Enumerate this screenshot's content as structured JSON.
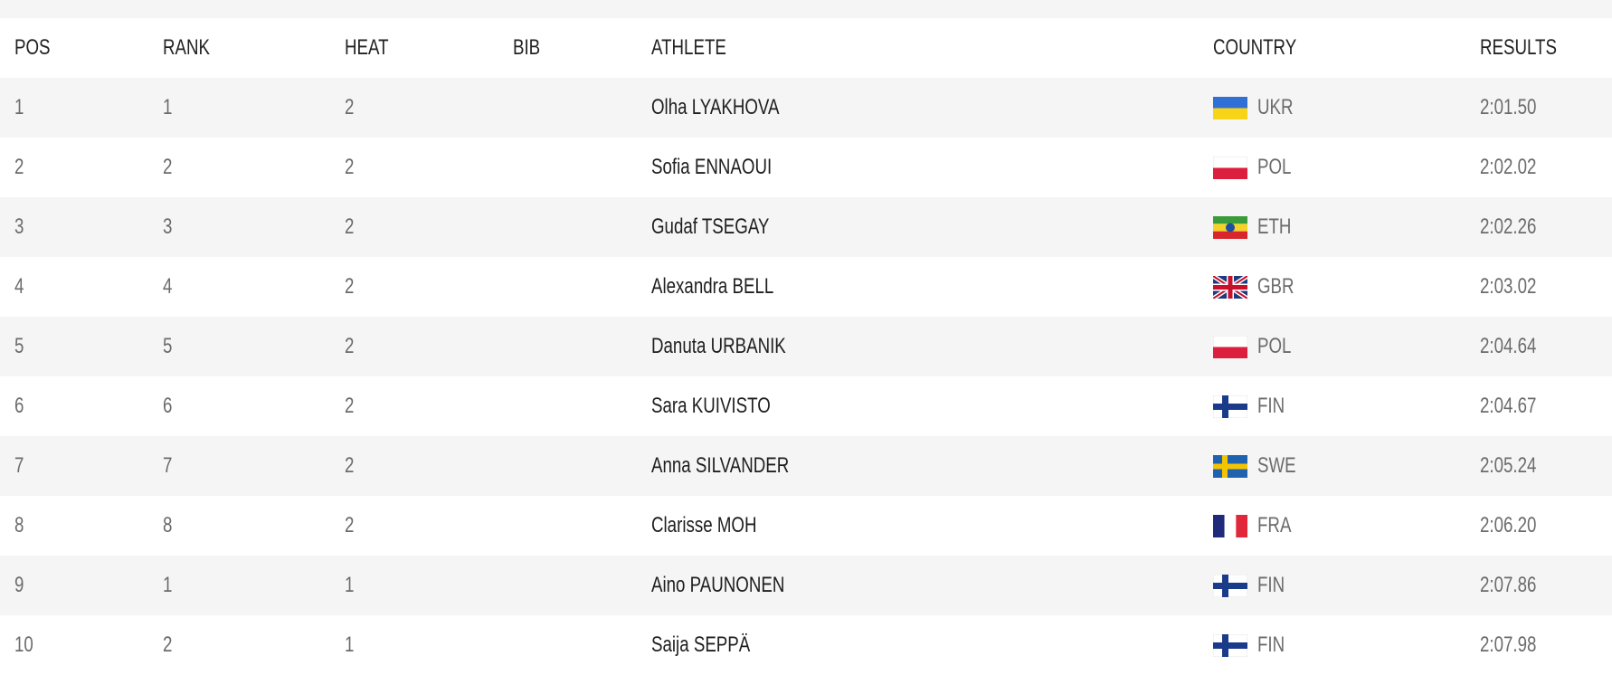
{
  "table": {
    "headers": {
      "pos": "POS",
      "rank": "RANK",
      "heat": "HEAT",
      "bib": "BIB",
      "athlete": "ATHLETE",
      "country": "COUNTRY",
      "results": "RESULTS"
    },
    "rows": [
      {
        "pos": "1",
        "rank": "1",
        "heat": "2",
        "bib": "",
        "athlete": "Olha LYAKHOVA",
        "country": "UKR",
        "flag_icon": "ukraine-flag-icon",
        "result": "2:01.50"
      },
      {
        "pos": "2",
        "rank": "2",
        "heat": "2",
        "bib": "",
        "athlete": "Sofia ENNAOUI",
        "country": "POL",
        "flag_icon": "poland-flag-icon",
        "result": "2:02.02"
      },
      {
        "pos": "3",
        "rank": "3",
        "heat": "2",
        "bib": "",
        "athlete": "Gudaf TSEGAY",
        "country": "ETH",
        "flag_icon": "ethiopia-flag-icon",
        "result": "2:02.26"
      },
      {
        "pos": "4",
        "rank": "4",
        "heat": "2",
        "bib": "",
        "athlete": "Alexandra BELL",
        "country": "GBR",
        "flag_icon": "uk-flag-icon",
        "result": "2:03.02"
      },
      {
        "pos": "5",
        "rank": "5",
        "heat": "2",
        "bib": "",
        "athlete": "Danuta URBANIK",
        "country": "POL",
        "flag_icon": "poland-flag-icon",
        "result": "2:04.64"
      },
      {
        "pos": "6",
        "rank": "6",
        "heat": "2",
        "bib": "",
        "athlete": "Sara KUIVISTO",
        "country": "FIN",
        "flag_icon": "finland-flag-icon",
        "result": "2:04.67"
      },
      {
        "pos": "7",
        "rank": "7",
        "heat": "2",
        "bib": "",
        "athlete": "Anna SILVANDER",
        "country": "SWE",
        "flag_icon": "sweden-flag-icon",
        "result": "2:05.24"
      },
      {
        "pos": "8",
        "rank": "8",
        "heat": "2",
        "bib": "",
        "athlete": "Clarisse MOH",
        "country": "FRA",
        "flag_icon": "france-flag-icon",
        "result": "2:06.20"
      },
      {
        "pos": "9",
        "rank": "1",
        "heat": "1",
        "bib": "",
        "athlete": "Aino PAUNONEN",
        "country": "FIN",
        "flag_icon": "finland-flag-icon",
        "result": "2:07.86"
      },
      {
        "pos": "10",
        "rank": "2",
        "heat": "1",
        "bib": "",
        "athlete": "Saija SEPPÄ",
        "country": "FIN",
        "flag_icon": "finland-flag-icon",
        "result": "2:07.98"
      }
    ]
  },
  "colors": {
    "row_alt_background": "#f5f5f5",
    "row_background": "#ffffff",
    "header_text": "#222222",
    "body_text": "#6b6b6b",
    "athlete_text": "#1e1e1e"
  }
}
